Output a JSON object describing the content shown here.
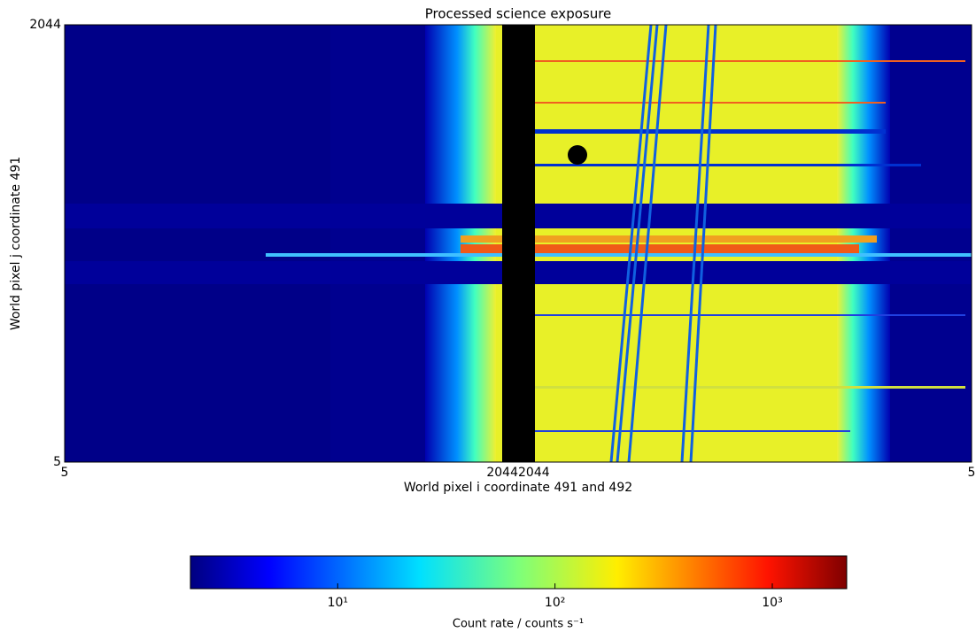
{
  "chart_data": {
    "type": "image",
    "title": "Processed science exposure",
    "xlabel": "World pixel i coordinate 491 and 492",
    "ylabel": "World pixel j coordinate 491",
    "ylim": [
      5,
      2044
    ],
    "yticks": [
      5,
      2044
    ],
    "panels": [
      {
        "xlim": [
          5,
          2044
        ],
        "xticks": [
          5,
          2044
        ]
      },
      {
        "xlim": [
          2044,
          5
        ],
        "xticks": [
          2044,
          5
        ]
      }
    ],
    "colorbar": {
      "scale": "log",
      "colormap": "jet",
      "lim": [
        2.1,
        2200
      ],
      "ticks": [
        {
          "value": 10,
          "label": "10¹"
        },
        {
          "value": 100,
          "label": "10²"
        },
        {
          "value": 1000,
          "label": "10³"
        }
      ],
      "label": "Count rate / counts s⁻¹"
    }
  }
}
